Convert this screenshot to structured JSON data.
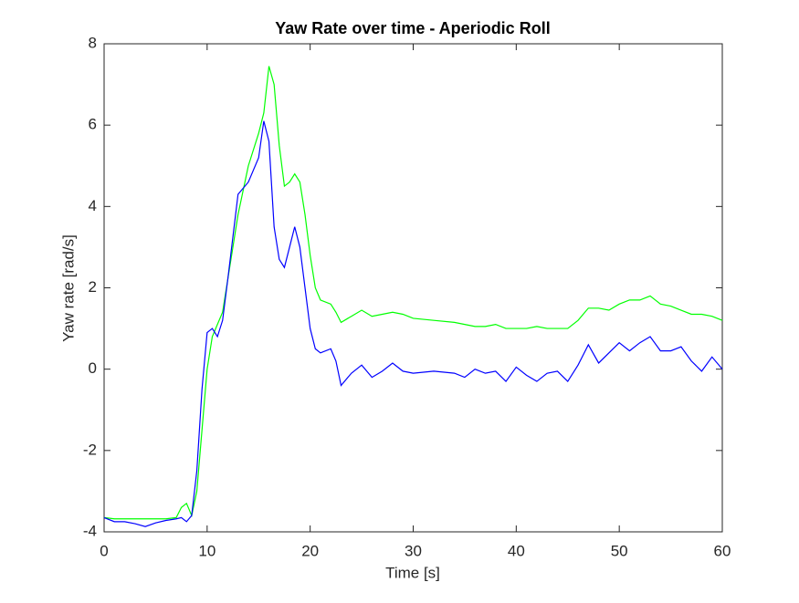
{
  "chart_data": {
    "type": "line",
    "title": "Yaw Rate over time - Aperiodic Roll",
    "x_label": "Time [s]",
    "y_label": "Yaw rate [rad/s]",
    "x": [
      0,
      1,
      2,
      3,
      4,
      5,
      6,
      7,
      7.5,
      8,
      8.5,
      9,
      9.5,
      10,
      10.5,
      11,
      11.5,
      12,
      13,
      14,
      15,
      15.5,
      16,
      16.5,
      17,
      17.5,
      18,
      18.5,
      19,
      19.5,
      20,
      20.5,
      21,
      22,
      22.5,
      23,
      24,
      25,
      26,
      27,
      28,
      29,
      30,
      32,
      34,
      35,
      36,
      37,
      38,
      39,
      40,
      41,
      42,
      43,
      44,
      45,
      46,
      47,
      48,
      49,
      50,
      51,
      52,
      53,
      54,
      55,
      56,
      57,
      58,
      59,
      60
    ],
    "series": [
      {
        "color": "#00ff00",
        "values": [
          -3.65,
          -3.68,
          -3.68,
          -3.68,
          -3.68,
          -3.68,
          -3.68,
          -3.65,
          -3.4,
          -3.3,
          -3.6,
          -3.0,
          -1.5,
          0.0,
          0.8,
          1.1,
          1.4,
          2.2,
          3.8,
          5.0,
          5.8,
          6.3,
          7.45,
          7.0,
          5.5,
          4.5,
          4.6,
          4.8,
          4.6,
          3.8,
          2.8,
          2.0,
          1.7,
          1.6,
          1.4,
          1.15,
          1.3,
          1.45,
          1.3,
          1.35,
          1.4,
          1.35,
          1.25,
          1.2,
          1.15,
          1.1,
          1.05,
          1.05,
          1.1,
          1.0,
          1.0,
          1.0,
          1.05,
          1.0,
          1.0,
          1.0,
          1.2,
          1.5,
          1.5,
          1.45,
          1.6,
          1.7,
          1.7,
          1.8,
          1.6,
          1.55,
          1.45,
          1.35,
          1.35,
          1.3,
          1.2
        ]
      },
      {
        "color": "#0000ff",
        "values": [
          -3.65,
          -3.75,
          -3.75,
          -3.8,
          -3.87,
          -3.78,
          -3.72,
          -3.68,
          -3.65,
          -3.75,
          -3.6,
          -2.5,
          -0.5,
          0.9,
          1.0,
          0.8,
          1.2,
          2.2,
          4.3,
          4.6,
          5.2,
          6.1,
          5.6,
          3.5,
          2.7,
          2.5,
          3.0,
          3.5,
          3.0,
          2.0,
          1.0,
          0.5,
          0.4,
          0.5,
          0.2,
          -0.4,
          -0.1,
          0.1,
          -0.2,
          -0.05,
          0.15,
          -0.05,
          -0.1,
          -0.05,
          -0.1,
          -0.2,
          0.0,
          -0.1,
          -0.05,
          -0.3,
          0.05,
          -0.15,
          -0.3,
          -0.1,
          -0.05,
          -0.3,
          0.1,
          0.6,
          0.15,
          0.4,
          0.65,
          0.45,
          0.65,
          0.8,
          0.45,
          0.45,
          0.55,
          0.2,
          -0.05,
          0.3,
          0.0
        ]
      }
    ],
    "xlim": [
      0,
      60
    ],
    "xticks": [
      0,
      10,
      20,
      30,
      40,
      50,
      60
    ],
    "ylim": [
      -4,
      8
    ],
    "yticks": [
      -4,
      -2,
      0,
      2,
      4,
      6,
      8
    ],
    "grid": false
  }
}
